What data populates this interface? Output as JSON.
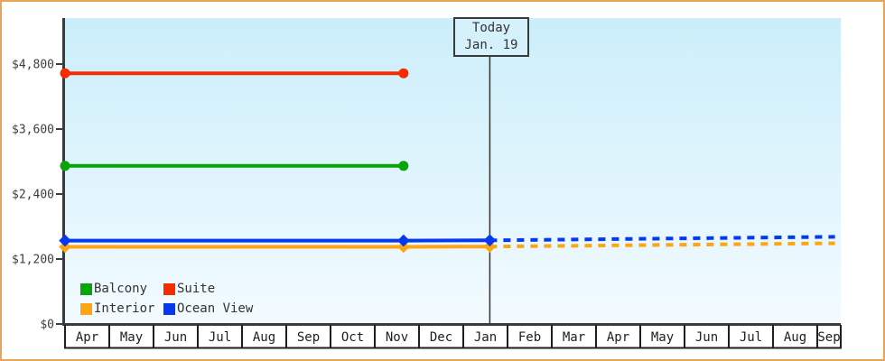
{
  "chart_data": {
    "type": "line",
    "title": "",
    "x_axis": {
      "months": [
        "Apr",
        "May",
        "Jun",
        "Jul",
        "Aug",
        "Sep",
        "Oct",
        "Nov",
        "Dec",
        "Jan",
        "Feb",
        "Mar",
        "Apr",
        "May",
        "Jun",
        "Jul",
        "Aug",
        "Sep"
      ]
    },
    "y_axis": {
      "tick_labels": [
        "$0",
        "$1,200",
        "$2,400",
        "$3,600",
        "$4,800"
      ],
      "tick_values": [
        0,
        1200,
        2400,
        3600,
        4800
      ],
      "ylim": [
        0,
        5650
      ],
      "grid": false
    },
    "today": {
      "label_title": "Today",
      "label_date": "Jan. 19",
      "month_position": 9.6
    },
    "series": [
      {
        "name": "Suite",
        "color": "#F62B00",
        "marker": "circle",
        "solid": {
          "x": [
            0,
            7.65
          ],
          "values": [
            4630,
            4630
          ]
        }
      },
      {
        "name": "Balcony",
        "color": "#08A40A",
        "marker": "circle",
        "solid": {
          "x": [
            0,
            7.65
          ],
          "values": [
            2920,
            2920
          ]
        }
      },
      {
        "name": "Interior",
        "color": "#FFA511",
        "marker": "diamond",
        "solid": {
          "x": [
            0,
            7.65,
            9.6
          ],
          "values": [
            1425,
            1425,
            1430
          ]
        },
        "forecast": {
          "x": [
            9.6,
            17.4
          ],
          "values": [
            1430,
            1490
          ]
        }
      },
      {
        "name": "Ocean View",
        "color": "#0539F0",
        "marker": "diamond",
        "solid": {
          "x": [
            0,
            7.65,
            9.6
          ],
          "values": [
            1540,
            1540,
            1545
          ]
        },
        "forecast": {
          "x": [
            9.6,
            17.4
          ],
          "values": [
            1545,
            1610
          ]
        }
      }
    ],
    "legend": {
      "position": "bottom-left",
      "labels": [
        "Balcony",
        "Suite",
        "Interior",
        "Ocean View"
      ]
    },
    "colors": {
      "frame_border": "#E9A35B",
      "plot_bg_top": "#CBEEFA",
      "plot_bg_bottom": "#F3FBFF",
      "axis": "#3B3B3B",
      "cell_border": "#1E1E1E",
      "today_line": "#333333",
      "label_text": "#3D3D3D"
    }
  }
}
